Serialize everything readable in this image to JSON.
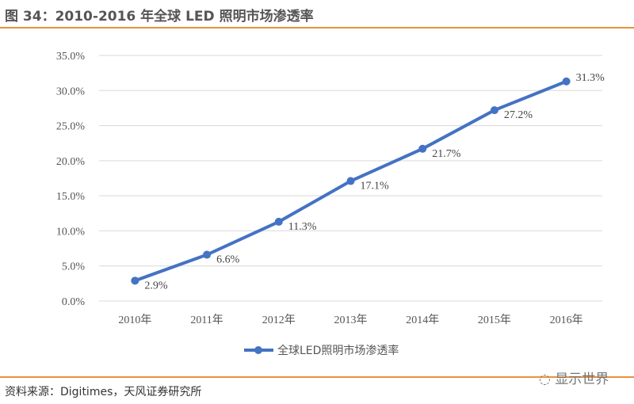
{
  "title": "图 34：2010-2016 年全球 LED 照明市场渗透率",
  "source": "资料来源：Digitimes，天风证券研究所",
  "watermark": "显示世界",
  "colors": {
    "series": "#4472c4",
    "rule": "#e8913c",
    "grid": "#d9d9d9"
  },
  "chart_data": {
    "type": "line",
    "categories": [
      "2010年",
      "2011年",
      "2012年",
      "2013年",
      "2014年",
      "2015年",
      "2016年"
    ],
    "series": [
      {
        "name": "全球LED照明市场渗透率",
        "values": [
          2.9,
          6.6,
          11.3,
          17.1,
          21.7,
          27.2,
          31.3
        ],
        "labels": [
          "2.9%",
          "6.6%",
          "11.3%",
          "17.1%",
          "21.7%",
          "27.2%",
          "31.3%"
        ]
      }
    ],
    "ylim": [
      0,
      35
    ],
    "yticks": [
      "0.0%",
      "5.0%",
      "10.0%",
      "15.0%",
      "20.0%",
      "25.0%",
      "30.0%",
      "35.0%"
    ],
    "grid": true,
    "legend": "bottom"
  }
}
